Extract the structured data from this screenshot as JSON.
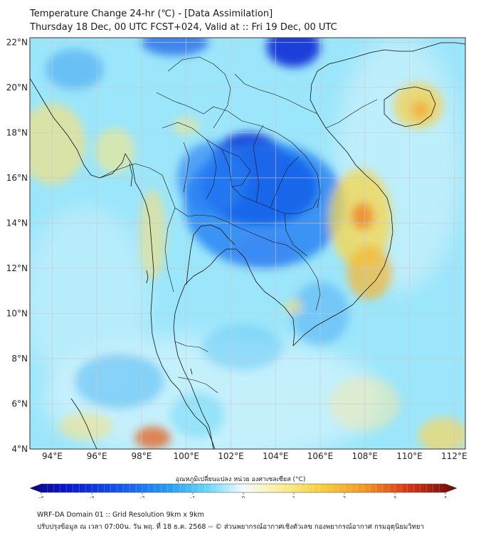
{
  "header": {
    "title": "Temperature Change 24-hr (℃) - [Data Assimilation]",
    "subtitle": "Thursday 18 Dec, 00 UTC FCST+024, Valid at :: Fri 19 Dec, 00 UTC"
  },
  "map": {
    "lat_labels": [
      "22°N",
      "20°N",
      "18°N",
      "16°N",
      "14°N",
      "12°N",
      "10°N",
      "8°N",
      "6°N",
      "4°N"
    ],
    "lon_labels": [
      "94°E",
      "96°E",
      "98°E",
      "100°E",
      "102°E",
      "104°E",
      "106°E",
      "108°E",
      "110°E",
      "112°E"
    ],
    "lat_range": [
      4,
      22.2
    ],
    "lon_range": [
      93,
      112.5
    ],
    "blobs": [
      {
        "lon": 103.3,
        "lat": 15.6,
        "rx": 2.6,
        "ry": 1.7,
        "color": "#0a2dd8",
        "op": 0.95
      },
      {
        "lon": 102.8,
        "lat": 16.8,
        "rx": 1.6,
        "ry": 1.2,
        "color": "#1232d4",
        "op": 0.9
      },
      {
        "lon": 103.5,
        "lat": 14.8,
        "rx": 3.6,
        "ry": 2.8,
        "color": "#1e78f0",
        "op": 0.75
      },
      {
        "lon": 101.2,
        "lat": 16.0,
        "rx": 1.6,
        "ry": 1.6,
        "color": "#2a7ef2",
        "op": 0.65
      },
      {
        "lon": 103.5,
        "lat": 12.8,
        "rx": 1.4,
        "ry": 0.8,
        "color": "#3a82f2",
        "op": 0.6
      },
      {
        "lon": 104.8,
        "lat": 21.8,
        "rx": 1.2,
        "ry": 0.9,
        "color": "#0a2cd6",
        "op": 0.9
      },
      {
        "lon": 99.5,
        "lat": 22.0,
        "rx": 1.5,
        "ry": 0.6,
        "color": "#1e5be6",
        "op": 0.7
      },
      {
        "lon": 95.0,
        "lat": 20.8,
        "rx": 1.3,
        "ry": 0.9,
        "color": "#4aa6f2",
        "op": 0.6
      },
      {
        "lon": 106.0,
        "lat": 10.0,
        "rx": 1.3,
        "ry": 1.4,
        "color": "#4aaaf4",
        "op": 0.5
      },
      {
        "lon": 102.5,
        "lat": 8.5,
        "rx": 1.8,
        "ry": 1.0,
        "color": "#54c4f6",
        "op": 0.45
      },
      {
        "lon": 97.0,
        "lat": 7.0,
        "rx": 2.0,
        "ry": 1.2,
        "color": "#48b4f4",
        "op": 0.5
      },
      {
        "lon": 100.5,
        "lat": 5.5,
        "rx": 1.2,
        "ry": 1.0,
        "color": "#6ad6f8",
        "op": 0.5
      },
      {
        "lon": 107.8,
        "lat": 14.2,
        "rx": 1.4,
        "ry": 2.2,
        "color": "#f7d64a",
        "op": 0.75
      },
      {
        "lon": 107.9,
        "lat": 14.3,
        "rx": 0.5,
        "ry": 0.6,
        "color": "#f08a2a",
        "op": 0.85
      },
      {
        "lon": 108.2,
        "lat": 11.8,
        "rx": 1.0,
        "ry": 1.2,
        "color": "#f2b838",
        "op": 0.75
      },
      {
        "lon": 110.4,
        "lat": 19.2,
        "rx": 1.1,
        "ry": 1.0,
        "color": "#f7d04a",
        "op": 0.75
      },
      {
        "lon": 110.5,
        "lat": 19.0,
        "rx": 0.4,
        "ry": 0.4,
        "color": "#f2a936",
        "op": 0.8
      },
      {
        "lon": 94.0,
        "lat": 17.5,
        "rx": 1.5,
        "ry": 1.8,
        "color": "#fae07a",
        "op": 0.65
      },
      {
        "lon": 96.8,
        "lat": 17.2,
        "rx": 0.9,
        "ry": 1.0,
        "color": "#fae884",
        "op": 0.6
      },
      {
        "lon": 98.5,
        "lat": 13.5,
        "rx": 0.6,
        "ry": 2.0,
        "color": "#fae07a",
        "op": 0.6
      },
      {
        "lon": 111.5,
        "lat": 4.6,
        "rx": 1.1,
        "ry": 0.8,
        "color": "#f9d660",
        "op": 0.7
      },
      {
        "lon": 98.5,
        "lat": 4.5,
        "rx": 0.8,
        "ry": 0.5,
        "color": "#e26c2a",
        "op": 0.8
      },
      {
        "lon": 95.5,
        "lat": 5.0,
        "rx": 1.2,
        "ry": 0.6,
        "color": "#fae07a",
        "op": 0.55
      },
      {
        "lon": 108.0,
        "lat": 6.0,
        "rx": 1.6,
        "ry": 1.2,
        "color": "#fbe9a0",
        "op": 0.45
      },
      {
        "lon": 104.8,
        "lat": 10.3,
        "rx": 0.4,
        "ry": 0.3,
        "color": "#fae07a",
        "op": 0.7
      },
      {
        "lon": 100.0,
        "lat": 18.3,
        "rx": 0.6,
        "ry": 0.4,
        "color": "#fae884",
        "op": 0.55
      }
    ]
  },
  "colorbar": {
    "title": "อุณหภูมิเปลี่ยนแปลง หน่วย องศาเซลเซียส (°C)",
    "min": -4,
    "max": 4,
    "ticks": [
      "-4",
      "-3",
      "-2",
      "-1",
      "0",
      "1",
      "2",
      "3",
      "4"
    ]
  },
  "footer": {
    "line1": "WRF-DA Domain 01 :: Grid Resolution 9km x 9km",
    "line2": "ปรับปรุงข้อมูล ณ เวลา 07:00น. วัน พฤ. ที่ 18 ธ.ค. 2568 -- © ส่วนพยากรณ์อากาศเชิงตัวเลข กองพยากรณ์อากาศ กรมอุตุนิยมวิทยา"
  },
  "colors": {
    "sea": "#9be6fb",
    "border": "#111111",
    "grid": "#c9c9c9"
  }
}
